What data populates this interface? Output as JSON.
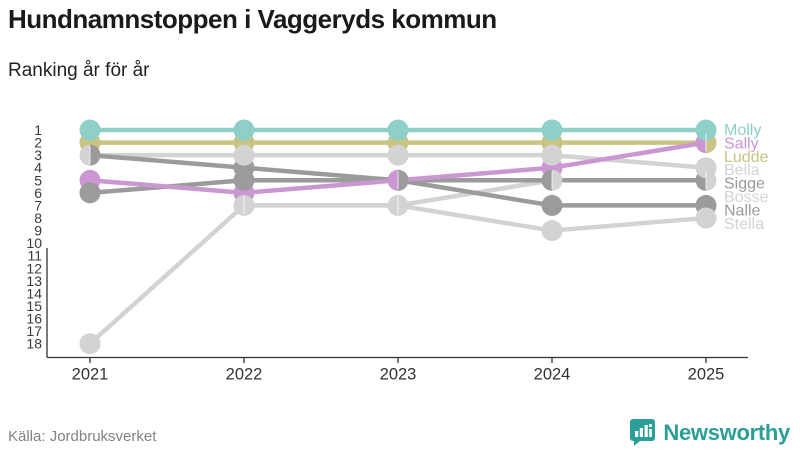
{
  "header": {
    "title": "Hundnamnstoppen i Vaggeryds kommun",
    "subtitle": "Ranking år för år"
  },
  "footer": {
    "source": "Källa: Jordbruksverket",
    "brand": "Newsworthy",
    "brand_color": "#2b9e97"
  },
  "chart_data": {
    "type": "line",
    "subtype": "bump-ranking",
    "x": [
      2021,
      2022,
      2023,
      2024,
      2025
    ],
    "yticks": [
      1,
      2,
      3,
      4,
      5,
      6,
      7,
      8,
      9,
      10,
      11,
      12,
      13,
      14,
      15,
      16,
      17,
      18
    ],
    "y_direction": "1 is best (top), rank increases downward",
    "grid": false,
    "legend_position": "right-of-last-point",
    "axis_color": "#333333",
    "tick_label_color": "#3a3a3a",
    "series": [
      {
        "name": "Molly",
        "color": "#8ecfc8",
        "values": [
          1,
          1,
          1,
          1,
          1
        ]
      },
      {
        "name": "Sally",
        "color": "#cb97d3",
        "values": [
          5,
          6,
          5,
          4,
          2
        ]
      },
      {
        "name": "Ludde",
        "color": "#c9c483",
        "values": [
          2,
          2,
          2,
          2,
          2
        ]
      },
      {
        "name": "Bella",
        "color": "#d3d3d3",
        "values": [
          3,
          3,
          3,
          3,
          4
        ]
      },
      {
        "name": "Sigge",
        "color": "#9b9b9b",
        "values": [
          3,
          4,
          5,
          5,
          5
        ]
      },
      {
        "name": "Bosse",
        "color": "#d3d3d3",
        "values": [
          null,
          7,
          7,
          5,
          5
        ]
      },
      {
        "name": "Nalle",
        "color": "#9b9b9b",
        "values": [
          6,
          5,
          5,
          7,
          7
        ]
      },
      {
        "name": "Stella",
        "color": "#d3d3d3",
        "values": [
          18,
          7,
          7,
          9,
          8
        ]
      }
    ],
    "ties_note": "Shared ranks drawn as split circles: 2021 r3 Bella+Sigge; 2022/2023 r7 Bosse+Stella; 2023 r5 Sally+Sigge+Nalle; 2024 r5 Sigge+Bosse; 2025 r2 Sally+Ludde, r5 Sigge+Bosse"
  }
}
